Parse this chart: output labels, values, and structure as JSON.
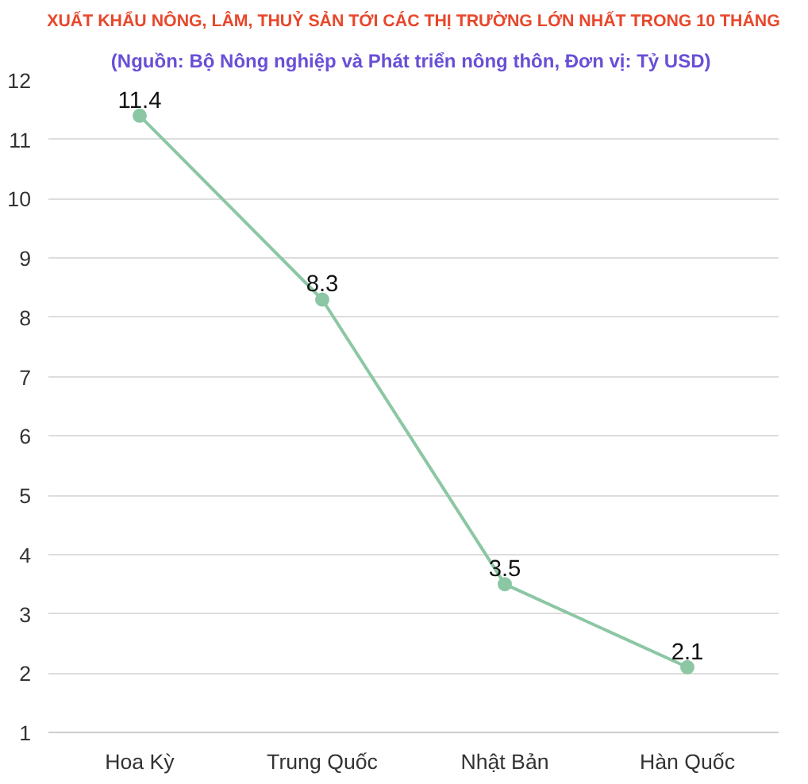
{
  "chart_data": {
    "type": "line",
    "title": "XUẤT KHẨU NÔNG, LÂM, THUỶ SẢN TỚI CÁC THỊ TRƯỜNG LỚN NHẤT TRONG 10 THÁNG",
    "subtitle": "(Nguồn:  Bộ Nông nghiệp và Phát triển nông thôn, Đơn vị: Tỷ USD)",
    "categories": [
      "Hoa Kỳ",
      "Trung Quốc",
      "Nhật Bản",
      "Hàn Quốc"
    ],
    "series": [
      {
        "color": "#8cc7a4",
        "values": [
          11.4,
          8.3,
          3.5,
          2.1
        ]
      }
    ],
    "ylim": [
      1,
      12
    ],
    "yticks": [
      1,
      2,
      3,
      4,
      5,
      6,
      7,
      8,
      9,
      10,
      11,
      12
    ],
    "grid": "y",
    "marker": "circle",
    "line_style": "solid",
    "data_labels": true
  }
}
